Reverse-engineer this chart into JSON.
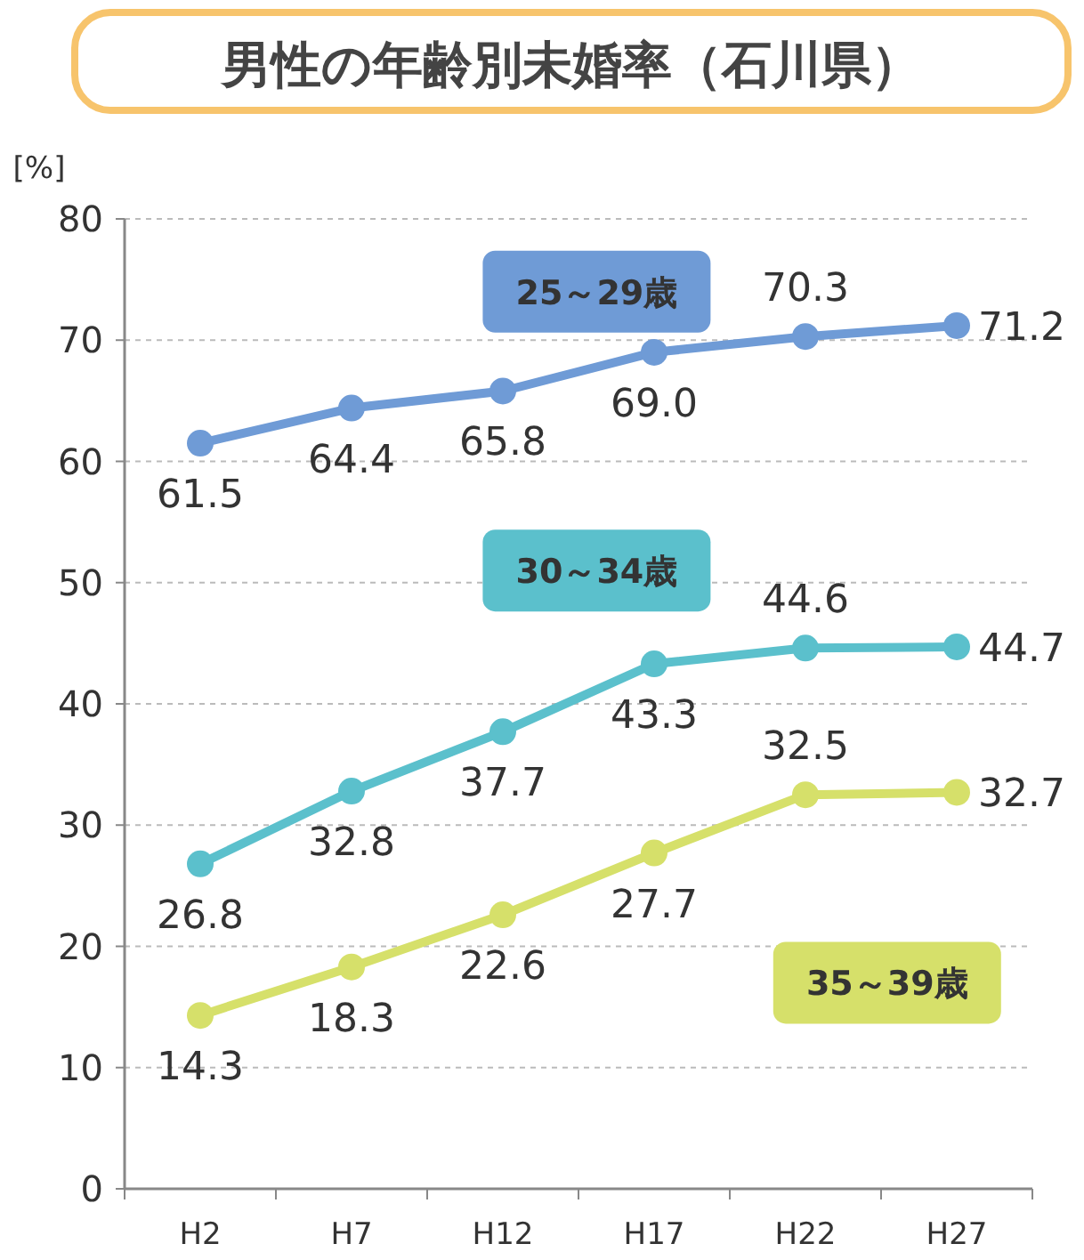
{
  "chart_data": {
    "type": "line",
    "title": "男性の年齢別未婚率（石川県）",
    "ylabel": "[%]",
    "categories": [
      "H2",
      "H7",
      "H12",
      "H17",
      "H22",
      "H27"
    ],
    "series": [
      {
        "name": "25～29歳",
        "color": "#6f9bd6",
        "values": [
          61.5,
          64.4,
          65.8,
          69.0,
          70.3,
          71.2
        ],
        "value_labels": [
          "61.5",
          "64.4",
          "65.8",
          "69.0",
          "70.3",
          "71.2"
        ]
      },
      {
        "name": "30～34歳",
        "color": "#5bc0cc",
        "values": [
          26.8,
          32.8,
          37.7,
          43.3,
          44.6,
          44.7
        ],
        "value_labels": [
          "26.8",
          "32.8",
          "37.7",
          "43.3",
          "44.6",
          "44.7"
        ]
      },
      {
        "name": "35～39歳",
        "color": "#d6e06a",
        "values": [
          14.3,
          18.3,
          22.6,
          27.7,
          32.5,
          32.7
        ],
        "value_labels": [
          "14.3",
          "18.3",
          "22.6",
          "27.7",
          "32.5",
          "32.7"
        ]
      }
    ],
    "ylim": [
      0,
      80
    ],
    "yticks": [
      0,
      10,
      20,
      30,
      40,
      50,
      60,
      70,
      80
    ],
    "grid": "y",
    "marker": "circle",
    "line_style": "solid"
  }
}
